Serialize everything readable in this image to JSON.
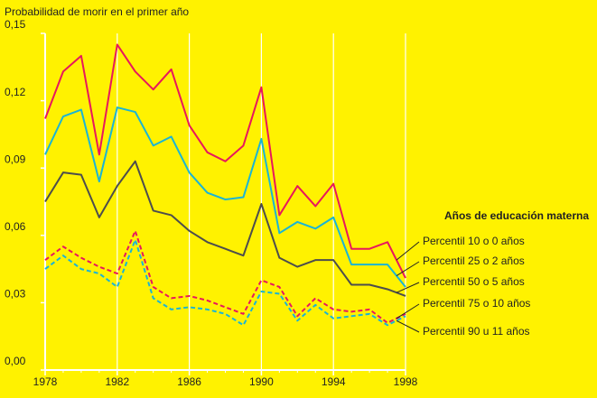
{
  "chart_data": {
    "type": "line",
    "y_label": "Probabilidad de morir en el primer año",
    "legend_title": "Años de educación materna",
    "background": "#fff200",
    "x": [
      1978,
      1979,
      1980,
      1981,
      1982,
      1983,
      1984,
      1985,
      1986,
      1987,
      1988,
      1989,
      1990,
      1991,
      1992,
      1993,
      1994,
      1995,
      1996,
      1997,
      1998
    ],
    "xlim": [
      1978,
      1998
    ],
    "xticks": [
      1978,
      1982,
      1986,
      1990,
      1994,
      1998
    ],
    "ylim": [
      0,
      0.15
    ],
    "yticks": [
      {
        "value": 0,
        "label": "0,00"
      },
      {
        "value": 0.03,
        "label": "0,03"
      },
      {
        "value": 0.06,
        "label": "0,06"
      },
      {
        "value": 0.09,
        "label": "0,09"
      },
      {
        "value": 0.12,
        "label": "0,12"
      },
      {
        "value": 0.15,
        "label": "0,15"
      }
    ],
    "grid": true,
    "series": [
      {
        "name": "Percentil 10 o 0 años",
        "color": "#e8175d",
        "dashed": false,
        "values": [
          0.112,
          0.133,
          0.14,
          0.096,
          0.145,
          0.133,
          0.125,
          0.134,
          0.109,
          0.097,
          0.093,
          0.1,
          0.126,
          0.069,
          0.082,
          0.073,
          0.083,
          0.054,
          0.054,
          0.057,
          0.041
        ]
      },
      {
        "name": "Percentil 25 o 2 años",
        "color": "#1ab4d6",
        "dashed": false,
        "values": [
          0.096,
          0.113,
          0.116,
          0.084,
          0.117,
          0.115,
          0.1,
          0.104,
          0.088,
          0.079,
          0.076,
          0.077,
          0.103,
          0.061,
          0.066,
          0.063,
          0.068,
          0.047,
          0.047,
          0.047,
          0.037
        ]
      },
      {
        "name": "Percentil 50 o 5 años",
        "color": "#4d4d4d",
        "dashed": false,
        "values": [
          0.075,
          0.088,
          0.087,
          0.068,
          0.082,
          0.093,
          0.071,
          0.069,
          0.062,
          0.057,
          0.054,
          0.051,
          0.074,
          0.05,
          0.046,
          0.049,
          0.049,
          0.038,
          0.038,
          0.036,
          0.033
        ]
      },
      {
        "name": "Percentil 75 o 10 años",
        "color": "#e8175d",
        "dashed": true,
        "values": [
          0.049,
          0.055,
          0.05,
          0.046,
          0.043,
          0.062,
          0.037,
          0.032,
          0.033,
          0.031,
          0.028,
          0.025,
          0.04,
          0.037,
          0.024,
          0.032,
          0.027,
          0.026,
          0.027,
          0.021,
          0.025
        ]
      },
      {
        "name": "Percentil 90 u 11 años",
        "color": "#1ab4d6",
        "dashed": true,
        "values": [
          0.045,
          0.051,
          0.045,
          0.043,
          0.037,
          0.058,
          0.032,
          0.027,
          0.028,
          0.027,
          0.025,
          0.02,
          0.035,
          0.034,
          0.022,
          0.029,
          0.023,
          0.024,
          0.025,
          0.02,
          0.024
        ]
      }
    ]
  }
}
